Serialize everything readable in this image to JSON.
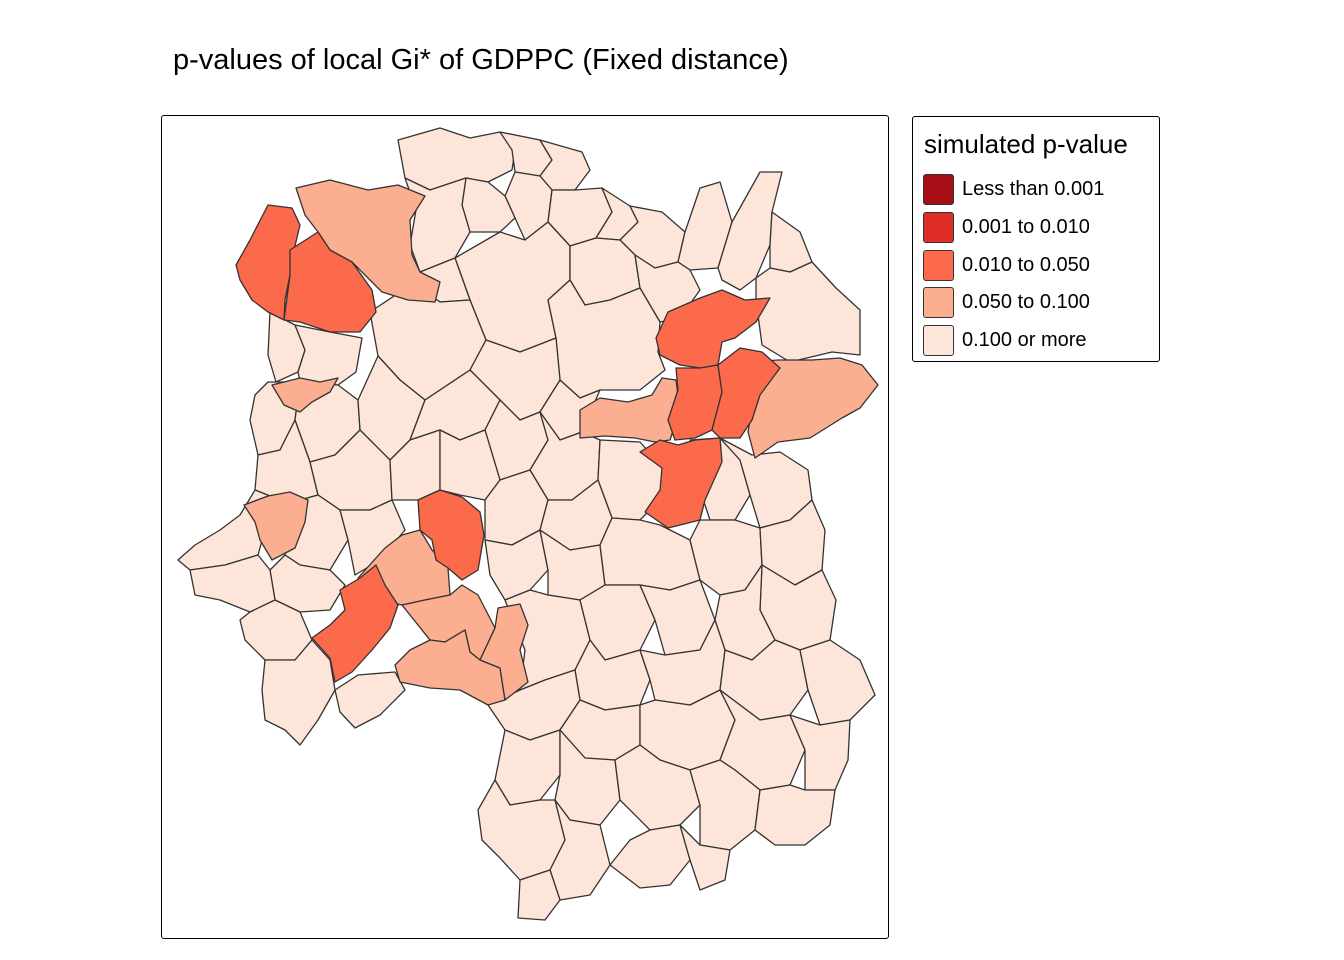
{
  "title": "p-values of local Gi* of GDPPC (Fixed distance)",
  "legend": {
    "title": "simulated p-value",
    "classes": [
      {
        "label": "Less than 0.001",
        "color": "#a50f15"
      },
      {
        "label": "0.001 to 0.010",
        "color": "#de2d26"
      },
      {
        "label": "0.010 to 0.050",
        "color": "#fb6a4a"
      },
      {
        "label": "0.050 to 0.100",
        "color": "#fcae91"
      },
      {
        "label": "0.100 or more",
        "color": "#fee5d9"
      }
    ]
  },
  "style": {
    "border_color": "#333333"
  },
  "counties_by_class": {
    "Less than 0.001": 0,
    "0.001 to 0.010": 0,
    "0.010 to 0.050": 8,
    "0.050 to 0.100": 9,
    "0.100 or more": 71
  }
}
